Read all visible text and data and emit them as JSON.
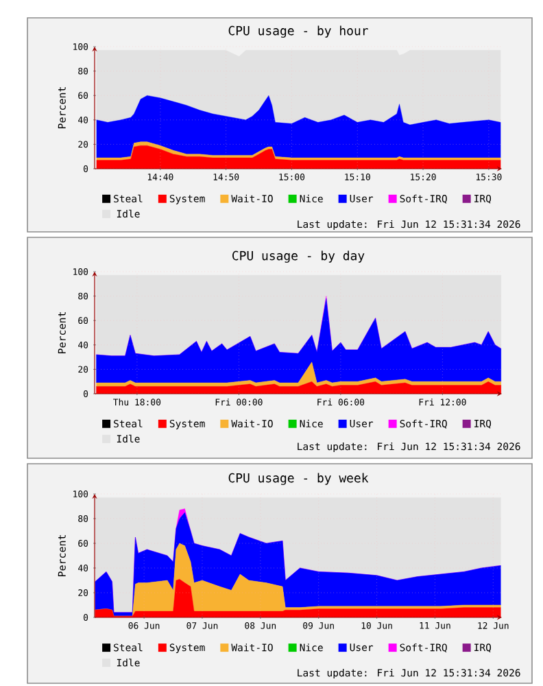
{
  "chart_data": [
    {
      "type": "area",
      "stacked": true,
      "title": "CPU usage - by hour",
      "ylabel": "Percent",
      "grid": true,
      "legend": "bottom",
      "x": [
        14.505,
        14.5333,
        14.5667,
        14.5917,
        14.6,
        14.6167,
        14.6333,
        14.6667,
        14.7,
        14.7333,
        14.7667,
        14.8,
        14.8333,
        14.8667,
        14.8833,
        14.9,
        14.9167,
        14.9333,
        14.9417,
        14.95,
        14.9583,
        15.0,
        15.0333,
        15.0667,
        15.1,
        15.1333,
        15.1667,
        15.2,
        15.2333,
        15.2667,
        15.2733,
        15.2833,
        15.3,
        15.3333,
        15.3667,
        15.4,
        15.4333,
        15.4667,
        15.5,
        15.53
      ],
      "xlim": [
        14.5,
        15.5333
      ],
      "ylim": [
        0,
        100
      ],
      "xticks": [
        {
          "value": 14.6667,
          "label": "14:40"
        },
        {
          "value": 14.8333,
          "label": "14:50"
        },
        {
          "value": 15.0,
          "label": "15:00"
        },
        {
          "value": 15.1667,
          "label": "15:10"
        },
        {
          "value": 15.3333,
          "label": "15:20"
        },
        {
          "value": 15.5,
          "label": "15:30"
        }
      ],
      "yticks": [
        0,
        20,
        40,
        60,
        80,
        100
      ],
      "series": [
        {
          "name": "Steal",
          "color": "#000000",
          "values": [
            null,
            null,
            null,
            null,
            null,
            null,
            null,
            null,
            null,
            null,
            null,
            null,
            null,
            null,
            null,
            null,
            null,
            null,
            null,
            null,
            null,
            null,
            null,
            null,
            null,
            null,
            null,
            null,
            null,
            null,
            null,
            null,
            null,
            null,
            null,
            null,
            null,
            null,
            null,
            null
          ]
        },
        {
          "name": "System",
          "color": "#ff0000",
          "values": [
            7,
            7,
            7,
            8,
            18,
            19,
            19,
            16,
            12,
            10,
            10,
            9,
            9,
            9,
            9,
            9,
            12,
            15,
            16,
            16,
            8,
            7,
            7,
            7,
            7,
            7,
            7,
            7,
            7,
            7,
            8,
            7,
            7,
            7,
            7,
            7,
            7,
            7,
            7,
            7
          ]
        },
        {
          "name": "Wait-IO",
          "color": "#f8b232",
          "values": [
            2,
            2,
            2,
            2,
            3,
            3,
            3,
            3,
            3,
            2,
            2,
            2,
            2,
            2,
            2,
            2,
            2,
            2,
            2,
            2,
            2,
            2,
            2,
            2,
            2,
            2,
            2,
            2,
            2,
            2,
            2,
            2,
            2,
            2,
            2,
            2,
            2,
            2,
            2,
            2
          ]
        },
        {
          "name": "Nice",
          "color": "#00cc00",
          "values": [
            null,
            null,
            null,
            null,
            null,
            null,
            null,
            null,
            null,
            null,
            null,
            null,
            null,
            null,
            null,
            null,
            null,
            null,
            null,
            null,
            null,
            null,
            null,
            null,
            null,
            null,
            null,
            null,
            null,
            null,
            null,
            null,
            null,
            null,
            null,
            null,
            null,
            null,
            null,
            null
          ]
        },
        {
          "name": "User",
          "color": "#0000ff",
          "values": [
            31,
            29,
            31,
            32,
            24,
            35,
            38,
            39,
            40,
            40,
            36,
            34,
            32,
            30,
            29,
            32,
            34,
            39,
            42,
            34,
            28,
            28,
            33,
            29,
            31,
            35,
            29,
            31,
            29,
            36,
            43,
            29,
            27,
            29,
            31,
            28,
            29,
            30,
            31,
            29
          ]
        },
        {
          "name": "Soft-IRQ",
          "color": "#ff00ff",
          "values": [
            null,
            null,
            null,
            null,
            null,
            null,
            null,
            null,
            null,
            null,
            null,
            null,
            null,
            null,
            null,
            null,
            null,
            null,
            null,
            null,
            null,
            null,
            null,
            null,
            null,
            null,
            null,
            null,
            null,
            null,
            null,
            null,
            null,
            null,
            null,
            null,
            null,
            null,
            null,
            null
          ]
        },
        {
          "name": "IRQ",
          "color": "#8b1a8b",
          "values": [
            null,
            null,
            null,
            null,
            null,
            null,
            null,
            null,
            null,
            null,
            null,
            null,
            null,
            null,
            null,
            null,
            null,
            null,
            null,
            null,
            null,
            null,
            null,
            null,
            null,
            null,
            null,
            null,
            null,
            null,
            null,
            null,
            null,
            null,
            null,
            null,
            null,
            null,
            null,
            null
          ]
        },
        {
          "name": "Idle",
          "color": "#e2e2e2",
          "values": [
            57,
            59,
            57,
            55,
            52,
            40,
            37,
            39,
            42,
            45,
            49,
            52,
            54,
            51,
            57,
            54,
            49,
            41,
            37,
            45,
            59,
            60,
            55,
            59,
            57,
            53,
            59,
            57,
            59,
            52,
            40,
            56,
            61,
            59,
            57,
            60,
            59,
            58,
            57,
            59
          ]
        }
      ],
      "annotations": [
        "Last update: Fri Jun 12 15:31:34 2026"
      ]
    },
    {
      "type": "area",
      "stacked": true,
      "title": "CPU usage - by day",
      "ylabel": "Percent",
      "grid": true,
      "legend": "bottom",
      "x": [
        "2026-06-11T15:36",
        "2026-06-11T16:30",
        "2026-06-11T17:18",
        "2026-06-11T17:36",
        "2026-06-11T17:54",
        "2026-06-11T19:00",
        "2026-06-11T20:30",
        "2026-06-11T21:30",
        "2026-06-11T21:48",
        "2026-06-11T22:06",
        "2026-06-11T22:24",
        "2026-06-11T23:00",
        "2026-06-11T23:18",
        "2026-06-12T00:40",
        "2026-06-12T01:00",
        "2026-06-12T02:06",
        "2026-06-12T02:24",
        "2026-06-12T03:30",
        "2026-06-12T04:18",
        "2026-06-12T04:36",
        "2026-06-12T05:09",
        "2026-06-12T05:30",
        "2026-06-12T06:00",
        "2026-06-12T06:18",
        "2026-06-12T07:00",
        "2026-06-12T08:03",
        "2026-06-12T08:24",
        "2026-06-12T09:48",
        "2026-06-12T10:12",
        "2026-06-12T11:06",
        "2026-06-12T11:36",
        "2026-06-12T12:30",
        "2026-06-12T13:12",
        "2026-06-12T13:54",
        "2026-06-12T14:18",
        "2026-06-12T14:42",
        "2026-06-12T15:06",
        "2026-06-12T15:27"
      ],
      "xlim": [
        "2026-06-11T15:30",
        "2026-06-12T15:30"
      ],
      "ylim": [
        0,
        100
      ],
      "xticks": [
        {
          "value": "2026-06-11T18:00",
          "label": "Thu 18:00"
        },
        {
          "value": "2026-06-12T00:00",
          "label": "Fri 00:00"
        },
        {
          "value": "2026-06-12T06:00",
          "label": "Fri 06:00"
        },
        {
          "value": "2026-06-12T12:00",
          "label": "Fri 12:00"
        }
      ],
      "yticks": [
        0,
        20,
        40,
        60,
        80,
        100
      ],
      "series": [
        {
          "name": "Steal",
          "color": "#000000",
          "values": [
            null,
            null,
            null,
            null,
            null,
            null,
            null,
            null,
            null,
            null,
            null,
            null,
            null,
            null,
            null,
            null,
            null,
            null,
            null,
            null,
            null,
            null,
            null,
            null,
            null,
            null,
            null,
            null,
            null,
            null,
            null,
            null,
            null,
            null,
            null,
            null,
            null,
            null
          ]
        },
        {
          "name": "System",
          "color": "#ff0000",
          "values": [
            6,
            6,
            6,
            8,
            6,
            6,
            6,
            6,
            6,
            6,
            6,
            6,
            6,
            8,
            6,
            8,
            6,
            6,
            10,
            6,
            8,
            6,
            7,
            7,
            7,
            10,
            7,
            9,
            7,
            7,
            7,
            7,
            7,
            7,
            7,
            10,
            7,
            7
          ]
        },
        {
          "name": "Wait-IO",
          "color": "#f8b232",
          "values": [
            3,
            3,
            3,
            3,
            3,
            3,
            3,
            3,
            3,
            3,
            3,
            3,
            3,
            3,
            3,
            3,
            3,
            3,
            16,
            3,
            3,
            3,
            3,
            3,
            3,
            3,
            3,
            3,
            3,
            3,
            3,
            3,
            3,
            3,
            3,
            3,
            3,
            3
          ]
        },
        {
          "name": "Nice",
          "color": "#00cc00",
          "values": [
            null,
            null,
            null,
            null,
            null,
            null,
            null,
            null,
            null,
            null,
            null,
            null,
            null,
            null,
            null,
            null,
            null,
            null,
            null,
            null,
            null,
            null,
            null,
            null,
            null,
            null,
            null,
            null,
            null,
            null,
            null,
            null,
            null,
            null,
            null,
            null,
            null,
            null
          ]
        },
        {
          "name": "User",
          "color": "#0000ff",
          "values": [
            23,
            22,
            22,
            37,
            24,
            22,
            23,
            34,
            25,
            34,
            26,
            32,
            27,
            36,
            26,
            30,
            25,
            24,
            22,
            25,
            67,
            26,
            32,
            26,
            26,
            49,
            27,
            39,
            27,
            32,
            28,
            28,
            30,
            32,
            30,
            38,
            30,
            27
          ]
        },
        {
          "name": "Soft-IRQ",
          "color": "#ff00ff",
          "values": [
            0,
            0,
            0,
            0,
            0,
            0,
            0,
            0,
            0,
            0,
            0,
            0,
            0,
            0,
            0,
            0,
            0,
            0,
            0,
            0,
            2,
            0,
            0,
            0,
            0,
            0,
            0,
            0,
            0,
            0,
            0,
            0,
            0,
            0,
            0,
            0,
            0,
            0
          ]
        },
        {
          "name": "IRQ",
          "color": "#8b1a8b",
          "values": [
            null,
            null,
            null,
            null,
            null,
            null,
            null,
            null,
            null,
            null,
            null,
            null,
            null,
            null,
            null,
            null,
            null,
            null,
            null,
            null,
            null,
            null,
            null,
            null,
            null,
            null,
            null,
            null,
            null,
            null,
            null,
            null,
            null,
            null,
            null,
            null,
            null,
            null
          ]
        },
        {
          "name": "Idle",
          "color": "#e2e2e2",
          "values": [
            65,
            66,
            66,
            49,
            64,
            66,
            65,
            54,
            63,
            54,
            62,
            56,
            61,
            50,
            62,
            56,
            63,
            64,
            49,
            63,
            17,
            62,
            55,
            61,
            61,
            35,
            60,
            46,
            60,
            55,
            59,
            59,
            57,
            55,
            57,
            46,
            57,
            60
          ]
        }
      ],
      "annotations": [
        "Last update: Fri Jun 12 15:31:34 2026"
      ]
    },
    {
      "type": "area",
      "stacked": true,
      "title": "CPU usage - by week",
      "ylabel": "Percent",
      "grid": true,
      "legend": "bottom",
      "x": [
        "2026-06-05T15:50",
        "2026-06-05T20:24",
        "2026-06-05T22:48",
        "2026-06-05T23:31",
        "2026-06-06T07:12",
        "2026-06-06T08:24",
        "2026-06-06T09:36",
        "2026-06-06T13:12",
        "2026-06-06T21:36",
        "2026-06-07T00:00",
        "2026-06-07T01:12",
        "2026-06-07T02:38",
        "2026-06-07T04:48",
        "2026-06-07T07:12",
        "2026-06-07T08:38",
        "2026-06-07T12:00",
        "2026-06-07T19:12",
        "2026-06-08T00:00",
        "2026-06-08T03:36",
        "2026-06-08T07:12",
        "2026-06-08T14:24",
        "2026-06-08T21:07",
        "2026-06-08T22:19",
        "2026-06-09T04:19",
        "2026-06-09T12:00",
        "2026-06-10T00:00",
        "2026-06-10T12:00",
        "2026-06-10T20:24",
        "2026-06-11T04:48",
        "2026-06-11T14:24",
        "2026-06-12T00:00",
        "2026-06-12T07:12",
        "2026-06-12T15:07"
      ],
      "xlim": [
        "2026-06-05T15:36",
        "2026-06-12T15:36"
      ],
      "ylim": [
        0,
        100
      ],
      "xticks": [
        {
          "value": "2026-06-06T12:00",
          "label": "06 Jun"
        },
        {
          "value": "2026-06-07T12:00",
          "label": "07 Jun"
        },
        {
          "value": "2026-06-08T12:00",
          "label": "08 Jun"
        },
        {
          "value": "2026-06-09T12:00",
          "label": "09 Jun"
        },
        {
          "value": "2026-06-10T12:00",
          "label": "10 Jun"
        },
        {
          "value": "2026-06-11T12:00",
          "label": "11 Jun"
        },
        {
          "value": "2026-06-12T12:00",
          "label": "12 Jun"
        }
      ],
      "yticks": [
        0,
        20,
        40,
        60,
        80,
        100
      ],
      "series": [
        {
          "name": "Steal",
          "color": "#000000",
          "values": [
            null,
            null,
            null,
            null,
            null,
            null,
            null,
            null,
            null,
            null,
            null,
            null,
            null,
            null,
            null,
            null,
            null,
            null,
            null,
            null,
            null,
            null,
            null,
            null,
            null,
            null,
            null,
            null,
            null,
            null,
            null,
            null,
            null
          ]
        },
        {
          "name": "System",
          "color": "#ff0000",
          "values": [
            6,
            7,
            6,
            1,
            1,
            5,
            5,
            5,
            5,
            5,
            30,
            31,
            28,
            25,
            5,
            5,
            5,
            5,
            5,
            5,
            5,
            5,
            6,
            6,
            7,
            7,
            7,
            7,
            7,
            7,
            8,
            8,
            8
          ]
        },
        {
          "name": "Wait-IO",
          "color": "#f8b232",
          "values": [
            0,
            0,
            0,
            0,
            0,
            22,
            23,
            23,
            25,
            17,
            25,
            29,
            30,
            20,
            23,
            25,
            20,
            17,
            30,
            25,
            23,
            20,
            2,
            2,
            2,
            2,
            2,
            2,
            2,
            2,
            2,
            2,
            2
          ]
        },
        {
          "name": "Nice",
          "color": "#00cc00",
          "values": [
            null,
            null,
            null,
            null,
            null,
            null,
            null,
            null,
            null,
            null,
            null,
            null,
            null,
            null,
            null,
            null,
            null,
            null,
            null,
            null,
            null,
            null,
            null,
            null,
            null,
            null,
            null,
            null,
            null,
            null,
            null,
            null,
            null
          ]
        },
        {
          "name": "User",
          "color": "#0000ff",
          "values": [
            23,
            30,
            23,
            3,
            3,
            38,
            24,
            27,
            20,
            23,
            17,
            20,
            27,
            25,
            32,
            28,
            30,
            28,
            33,
            35,
            32,
            37,
            22,
            32,
            28,
            27,
            25,
            21,
            24,
            26,
            27,
            30,
            32
          ]
        },
        {
          "name": "Soft-IRQ",
          "color": "#ff00ff",
          "values": [
            0,
            0,
            0,
            0,
            0,
            0,
            0,
            0,
            0,
            0,
            0,
            7,
            3,
            0,
            0,
            0,
            0,
            0,
            0,
            0,
            0,
            0,
            0,
            0,
            0,
            0,
            0,
            0,
            0,
            0,
            0,
            0,
            0
          ]
        },
        {
          "name": "IRQ",
          "color": "#8b1a8b",
          "values": [
            null,
            null,
            null,
            null,
            null,
            null,
            null,
            null,
            null,
            null,
            null,
            null,
            null,
            null,
            null,
            null,
            null,
            null,
            null,
            null,
            null,
            null,
            null,
            null,
            null,
            null,
            null,
            null,
            null,
            null,
            null,
            null,
            null
          ]
        },
        {
          "name": "Idle",
          "color": "#e2e2e2",
          "values": [
            68,
            60,
            68,
            93,
            93,
            32,
            45,
            42,
            47,
            52,
            25,
            10,
            9,
            27,
            37,
            39,
            42,
            47,
            29,
            32,
            37,
            35,
            67,
            57,
            60,
            61,
            63,
            67,
            64,
            62,
            60,
            57,
            55
          ]
        }
      ],
      "annotations": [
        "Last update: Fri Jun 12 15:31:34 2026"
      ]
    }
  ]
}
